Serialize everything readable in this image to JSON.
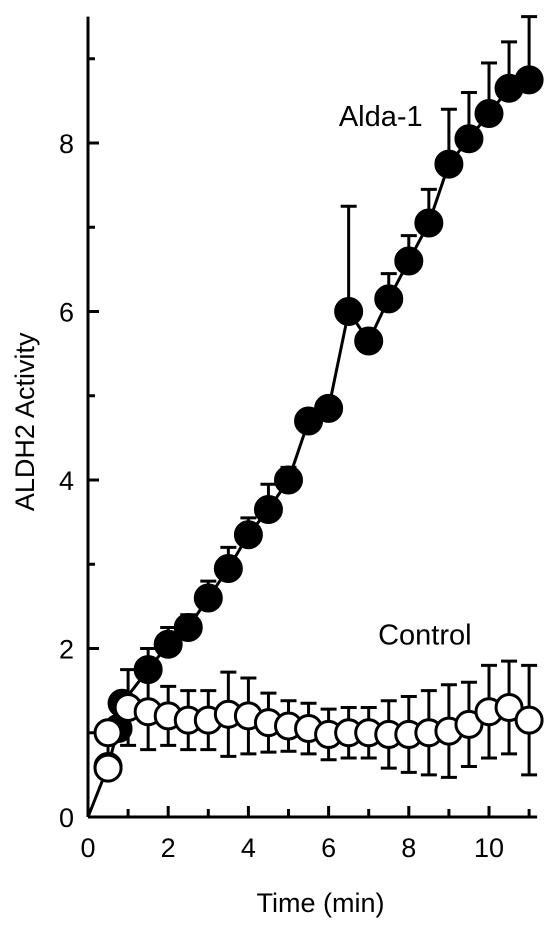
{
  "chart_data": {
    "type": "scatter",
    "xlabel": "Time (min)",
    "ylabel": "ALDH2 Activity",
    "xlim": [
      0,
      11.2
    ],
    "ylim": [
      0,
      9.5
    ],
    "x_ticks": [
      0,
      2,
      4,
      6,
      8,
      10
    ],
    "y_ticks": [
      0,
      2,
      4,
      6,
      8
    ],
    "grid": false,
    "legend": "none",
    "series": [
      {
        "name": "Alda-1",
        "marker": "filled-circle",
        "color": "#000000",
        "points": [
          {
            "x": 0.0,
            "y": 0.0,
            "err": 0
          },
          {
            "x": 0.5,
            "y": 0.6,
            "err": 0
          },
          {
            "x": 0.75,
            "y": 1.05,
            "err": 0
          },
          {
            "x": 0.85,
            "y": 1.35,
            "err": 0
          },
          {
            "x": 1.5,
            "y": 1.75,
            "err": 0.25
          },
          {
            "x": 2.0,
            "y": 2.05,
            "err": 0.2
          },
          {
            "x": 2.5,
            "y": 2.25,
            "err": 0.15
          },
          {
            "x": 3.0,
            "y": 2.6,
            "err": 0.2
          },
          {
            "x": 3.5,
            "y": 2.95,
            "err": 0.25
          },
          {
            "x": 4.0,
            "y": 3.35,
            "err": 0.2
          },
          {
            "x": 4.5,
            "y": 3.65,
            "err": 0.3
          },
          {
            "x": 5.0,
            "y": 4.0,
            "err": 0.15
          },
          {
            "x": 5.5,
            "y": 4.7,
            "err": 0.1
          },
          {
            "x": 6.0,
            "y": 4.85,
            "err": 0.1
          },
          {
            "x": 6.5,
            "y": 6.0,
            "err": 1.25
          },
          {
            "x": 7.0,
            "y": 5.65,
            "err": 0.1
          },
          {
            "x": 7.5,
            "y": 6.15,
            "err": 0.3
          },
          {
            "x": 8.0,
            "y": 6.6,
            "err": 0.3
          },
          {
            "x": 8.5,
            "y": 7.05,
            "err": 0.4
          },
          {
            "x": 9.0,
            "y": 7.75,
            "err": 0.65
          },
          {
            "x": 9.5,
            "y": 8.05,
            "err": 0.55
          },
          {
            "x": 10.0,
            "y": 8.35,
            "err": 0.6
          },
          {
            "x": 10.5,
            "y": 8.65,
            "err": 0.55
          },
          {
            "x": 11.0,
            "y": 8.75,
            "err": 0.75
          }
        ]
      },
      {
        "name": "Control",
        "marker": "open-circle",
        "color": "#000000",
        "points": [
          {
            "x": 0.5,
            "y": 0.58,
            "err": 0
          },
          {
            "x": 0.5,
            "y": 1.0,
            "err": 0
          },
          {
            "x": 1.0,
            "y": 1.3,
            "err": 0.45
          },
          {
            "x": 1.5,
            "y": 1.25,
            "err": 0.45
          },
          {
            "x": 2.0,
            "y": 1.2,
            "err": 0.35
          },
          {
            "x": 2.5,
            "y": 1.15,
            "err": 0.35
          },
          {
            "x": 3.0,
            "y": 1.15,
            "err": 0.35
          },
          {
            "x": 3.5,
            "y": 1.22,
            "err": 0.5
          },
          {
            "x": 4.0,
            "y": 1.2,
            "err": 0.45
          },
          {
            "x": 4.5,
            "y": 1.12,
            "err": 0.35
          },
          {
            "x": 5.0,
            "y": 1.08,
            "err": 0.3
          },
          {
            "x": 5.5,
            "y": 1.05,
            "err": 0.3
          },
          {
            "x": 6.0,
            "y": 0.98,
            "err": 0.3
          },
          {
            "x": 6.5,
            "y": 1.0,
            "err": 0.3
          },
          {
            "x": 7.0,
            "y": 1.0,
            "err": 0.3
          },
          {
            "x": 7.5,
            "y": 0.98,
            "err": 0.4
          },
          {
            "x": 8.0,
            "y": 0.98,
            "err": 0.45
          },
          {
            "x": 8.5,
            "y": 1.0,
            "err": 0.5
          },
          {
            "x": 9.0,
            "y": 1.02,
            "err": 0.55
          },
          {
            "x": 9.5,
            "y": 1.1,
            "err": 0.5
          },
          {
            "x": 10.0,
            "y": 1.25,
            "err": 0.55
          },
          {
            "x": 10.5,
            "y": 1.3,
            "err": 0.55
          },
          {
            "x": 11.0,
            "y": 1.15,
            "err": 0.65
          }
        ]
      }
    ],
    "annotations": [
      {
        "text": "Alda-1",
        "x": 7.3,
        "y": 8.2
      },
      {
        "text": "Control",
        "x": 8.4,
        "y": 2.05
      }
    ]
  }
}
